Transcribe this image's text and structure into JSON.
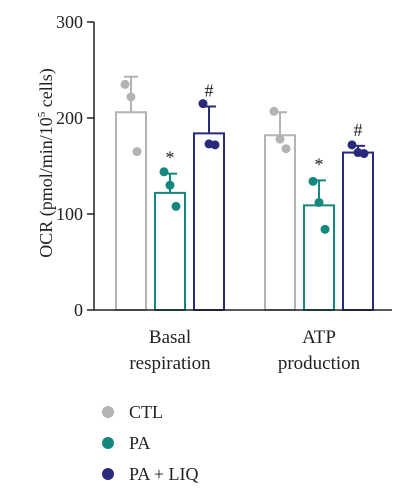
{
  "chart_data": {
    "type": "bar",
    "ylabel_main": "OCR (pmol/min/10",
    "ylabel_sup": "5",
    "ylabel_end": " cells)",
    "ylim": [
      0,
      300
    ],
    "yticks": [
      0,
      100,
      200,
      300
    ],
    "categories": [
      {
        "line1": "Basal",
        "line2": "respiration"
      },
      {
        "line1": "ATP",
        "line2": "production"
      }
    ],
    "series": [
      {
        "name": "CTL",
        "color": "#b3b3b3",
        "values": [
          206,
          182
        ],
        "errors": [
          37,
          24
        ],
        "points": [
          [
            235,
            222,
            165
          ],
          [
            207,
            178,
            168
          ]
        ],
        "markers": [
          "",
          ""
        ]
      },
      {
        "name": "PA",
        "color": "#14877f",
        "values": [
          122,
          109
        ],
        "errors": [
          20,
          26
        ],
        "points": [
          [
            144,
            130,
            108
          ],
          [
            134,
            112,
            84
          ]
        ],
        "markers": [
          "*",
          "*"
        ]
      },
      {
        "name": "PA + LIQ",
        "color": "#2a2a7a",
        "values": [
          184,
          164
        ],
        "errors": [
          28,
          7
        ],
        "points": [
          [
            215,
            173,
            172
          ],
          [
            172,
            164,
            163
          ]
        ],
        "markers": [
          "#",
          "#"
        ]
      }
    ],
    "legend_position": "bottom-left"
  }
}
